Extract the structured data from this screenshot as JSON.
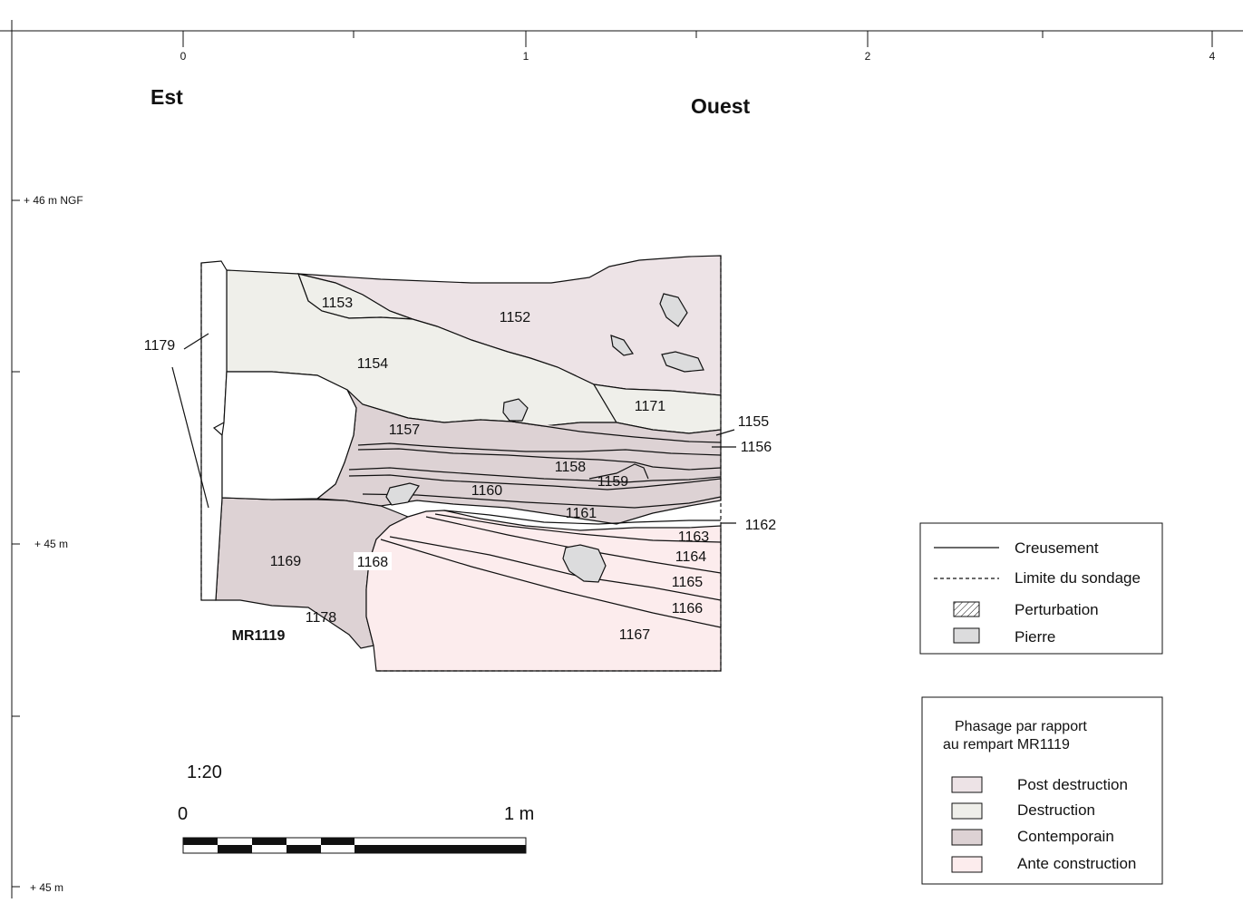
{
  "top_axis": {
    "ticks": [
      "0",
      "1",
      "2",
      "4"
    ]
  },
  "left_axis": {
    "labels": [
      "+ 46 m NGF",
      "+ 45 m",
      "+ 45 m"
    ]
  },
  "orientation": {
    "east": "Est",
    "west": "Ouest"
  },
  "wall_label": "MR1119",
  "units": [
    "1152",
    "1153",
    "1154",
    "1155",
    "1156",
    "1157",
    "1158",
    "1159",
    "1160",
    "1161",
    "1162",
    "1163",
    "1164",
    "1165",
    "1166",
    "1167",
    "1168",
    "1169",
    "1171",
    "1178",
    "1179"
  ],
  "colors": {
    "post_destruction": "#ede3e6",
    "destruction": "#efefea",
    "contemporain": "#ddd2d4",
    "ante_construction": "#fceced",
    "pierre": "#dcdcdd"
  },
  "legend": {
    "creusement": "Creusement",
    "limite": "Limite du sondage",
    "perturbation": "Perturbation",
    "pierre": "Pierre"
  },
  "phasage": {
    "title_line1": "Phasage par rapport",
    "title_line2": "au rempart MR1119",
    "items": [
      "Post destruction",
      "Destruction",
      "Contemporain",
      "Ante construction"
    ]
  },
  "scale": {
    "ratio": "1:20",
    "zero": "0",
    "one": "1 m"
  }
}
